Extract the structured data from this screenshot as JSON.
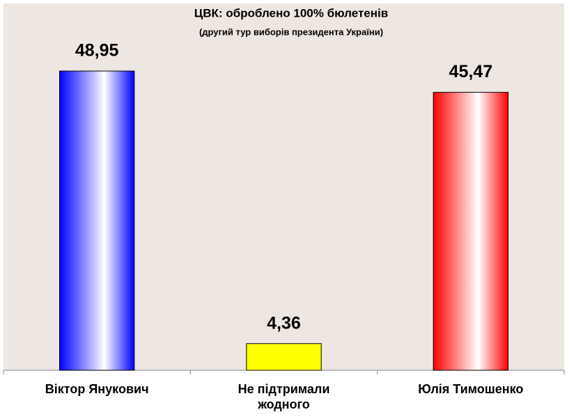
{
  "chart_data": {
    "type": "bar",
    "title": "ЦВК: оброблено 100% бюлетенів",
    "subtitle": "(другий тур виборів президента України)",
    "categories": [
      "Віктор Янукович",
      "Не підтримали жодного",
      "Юлія Тимошенко"
    ],
    "values": [
      48.95,
      4.36,
      45.47
    ],
    "value_labels": [
      "48,95",
      "4,36",
      "45,47"
    ],
    "colors": [
      "#0000ff",
      "#ffff00",
      "#ff0000"
    ],
    "gradient": [
      true,
      false,
      true
    ],
    "ylim": [
      0,
      60
    ]
  }
}
